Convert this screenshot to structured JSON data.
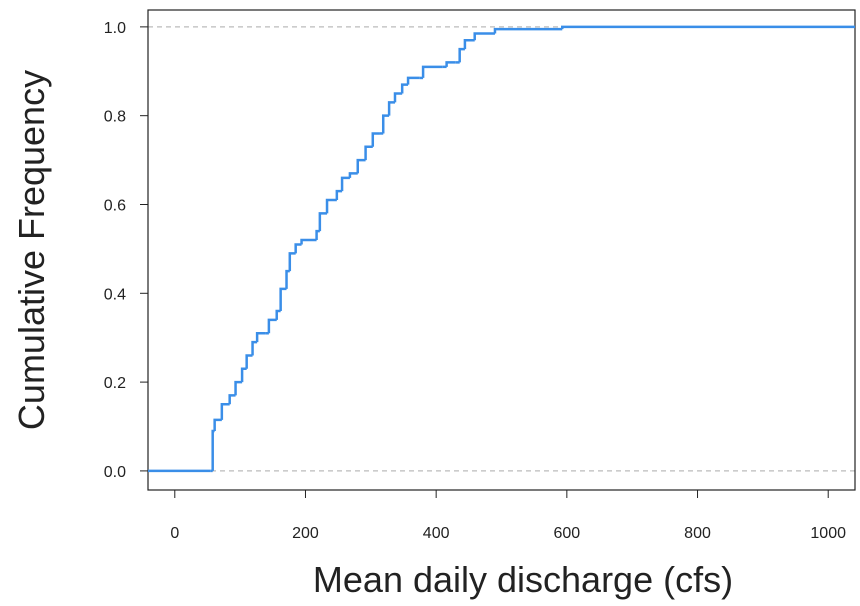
{
  "chart_data": {
    "type": "step",
    "xlabel": "Mean daily discharge (cfs)",
    "ylabel": "Cumulative Frequency",
    "color": "#3a8ee8",
    "x": [
      -41,
      55,
      58,
      61,
      72,
      84,
      93,
      103,
      110,
      119,
      126,
      139,
      144,
      156,
      162,
      171,
      176,
      185,
      194,
      217,
      222,
      233,
      248,
      256,
      268,
      280,
      292,
      303,
      314,
      319,
      328,
      337,
      348,
      357,
      375,
      380,
      410,
      416,
      430,
      436,
      444,
      459,
      490,
      593,
      1041
    ],
    "values": [
      0,
      0,
      0.09,
      0.115,
      0.15,
      0.17,
      0.2,
      0.23,
      0.26,
      0.29,
      0.31,
      0.31,
      0.34,
      0.36,
      0.41,
      0.45,
      0.49,
      0.51,
      0.52,
      0.54,
      0.58,
      0.61,
      0.63,
      0.66,
      0.67,
      0.7,
      0.73,
      0.76,
      0.76,
      0.8,
      0.83,
      0.85,
      0.87,
      0.885,
      0.885,
      0.91,
      0.91,
      0.92,
      0.92,
      0.95,
      0.97,
      0.985,
      0.995,
      1.0,
      1.0
    ],
    "xlim": [
      -41,
      1041
    ],
    "ylim": [
      -0.043,
      1.038
    ],
    "xticks": [
      0,
      200,
      400,
      600,
      800,
      1000
    ],
    "yticks": [
      {
        "value": 0,
        "label": "0.0"
      },
      0.2,
      0.4,
      0.6,
      0.8,
      {
        "value": 1,
        "label": "1.0"
      }
    ],
    "reference_lines": [
      0,
      1
    ]
  }
}
